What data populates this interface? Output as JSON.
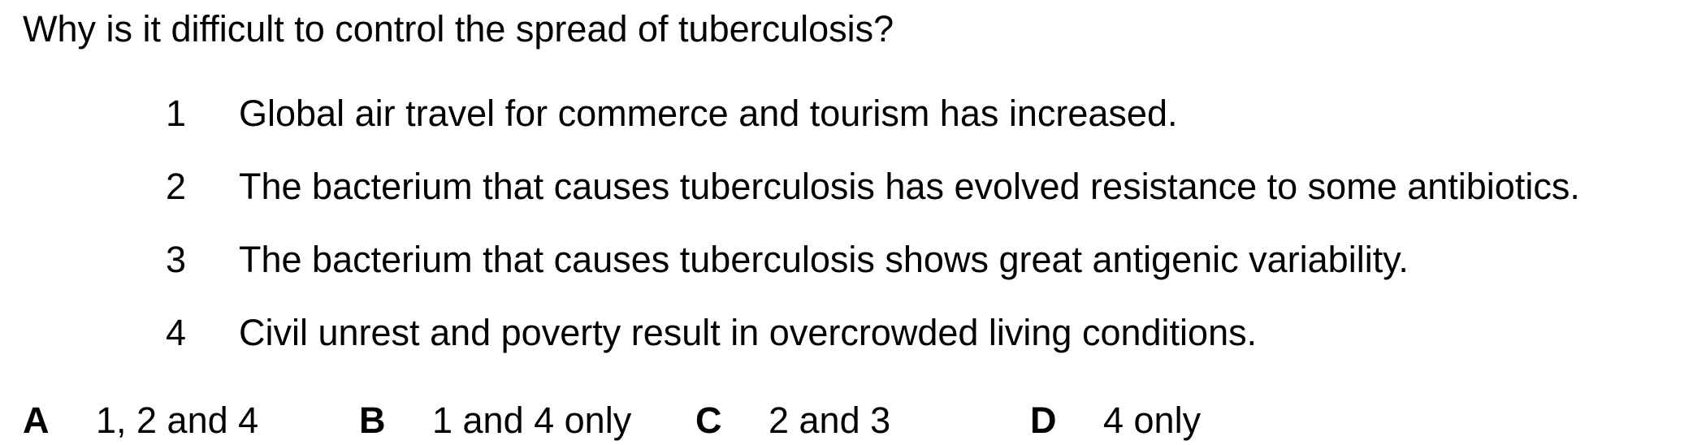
{
  "question": "Why is it difficult to control the spread of tuberculosis?",
  "statements": [
    {
      "number": "1",
      "text": "Global air travel for commerce and tourism has increased."
    },
    {
      "number": "2",
      "text": "The bacterium that causes tuberculosis has evolved resistance to some antibiotics."
    },
    {
      "number": "3",
      "text": "The bacterium that causes tuberculosis shows great antigenic variability."
    },
    {
      "number": "4",
      "text": "Civil unrest and poverty result in overcrowded living conditions."
    }
  ],
  "options": [
    {
      "letter": "A",
      "text": "1, 2 and 4"
    },
    {
      "letter": "B",
      "text": "1 and 4 only"
    },
    {
      "letter": "C",
      "text": "2 and 3"
    },
    {
      "letter": "D",
      "text": "4 only"
    }
  ]
}
